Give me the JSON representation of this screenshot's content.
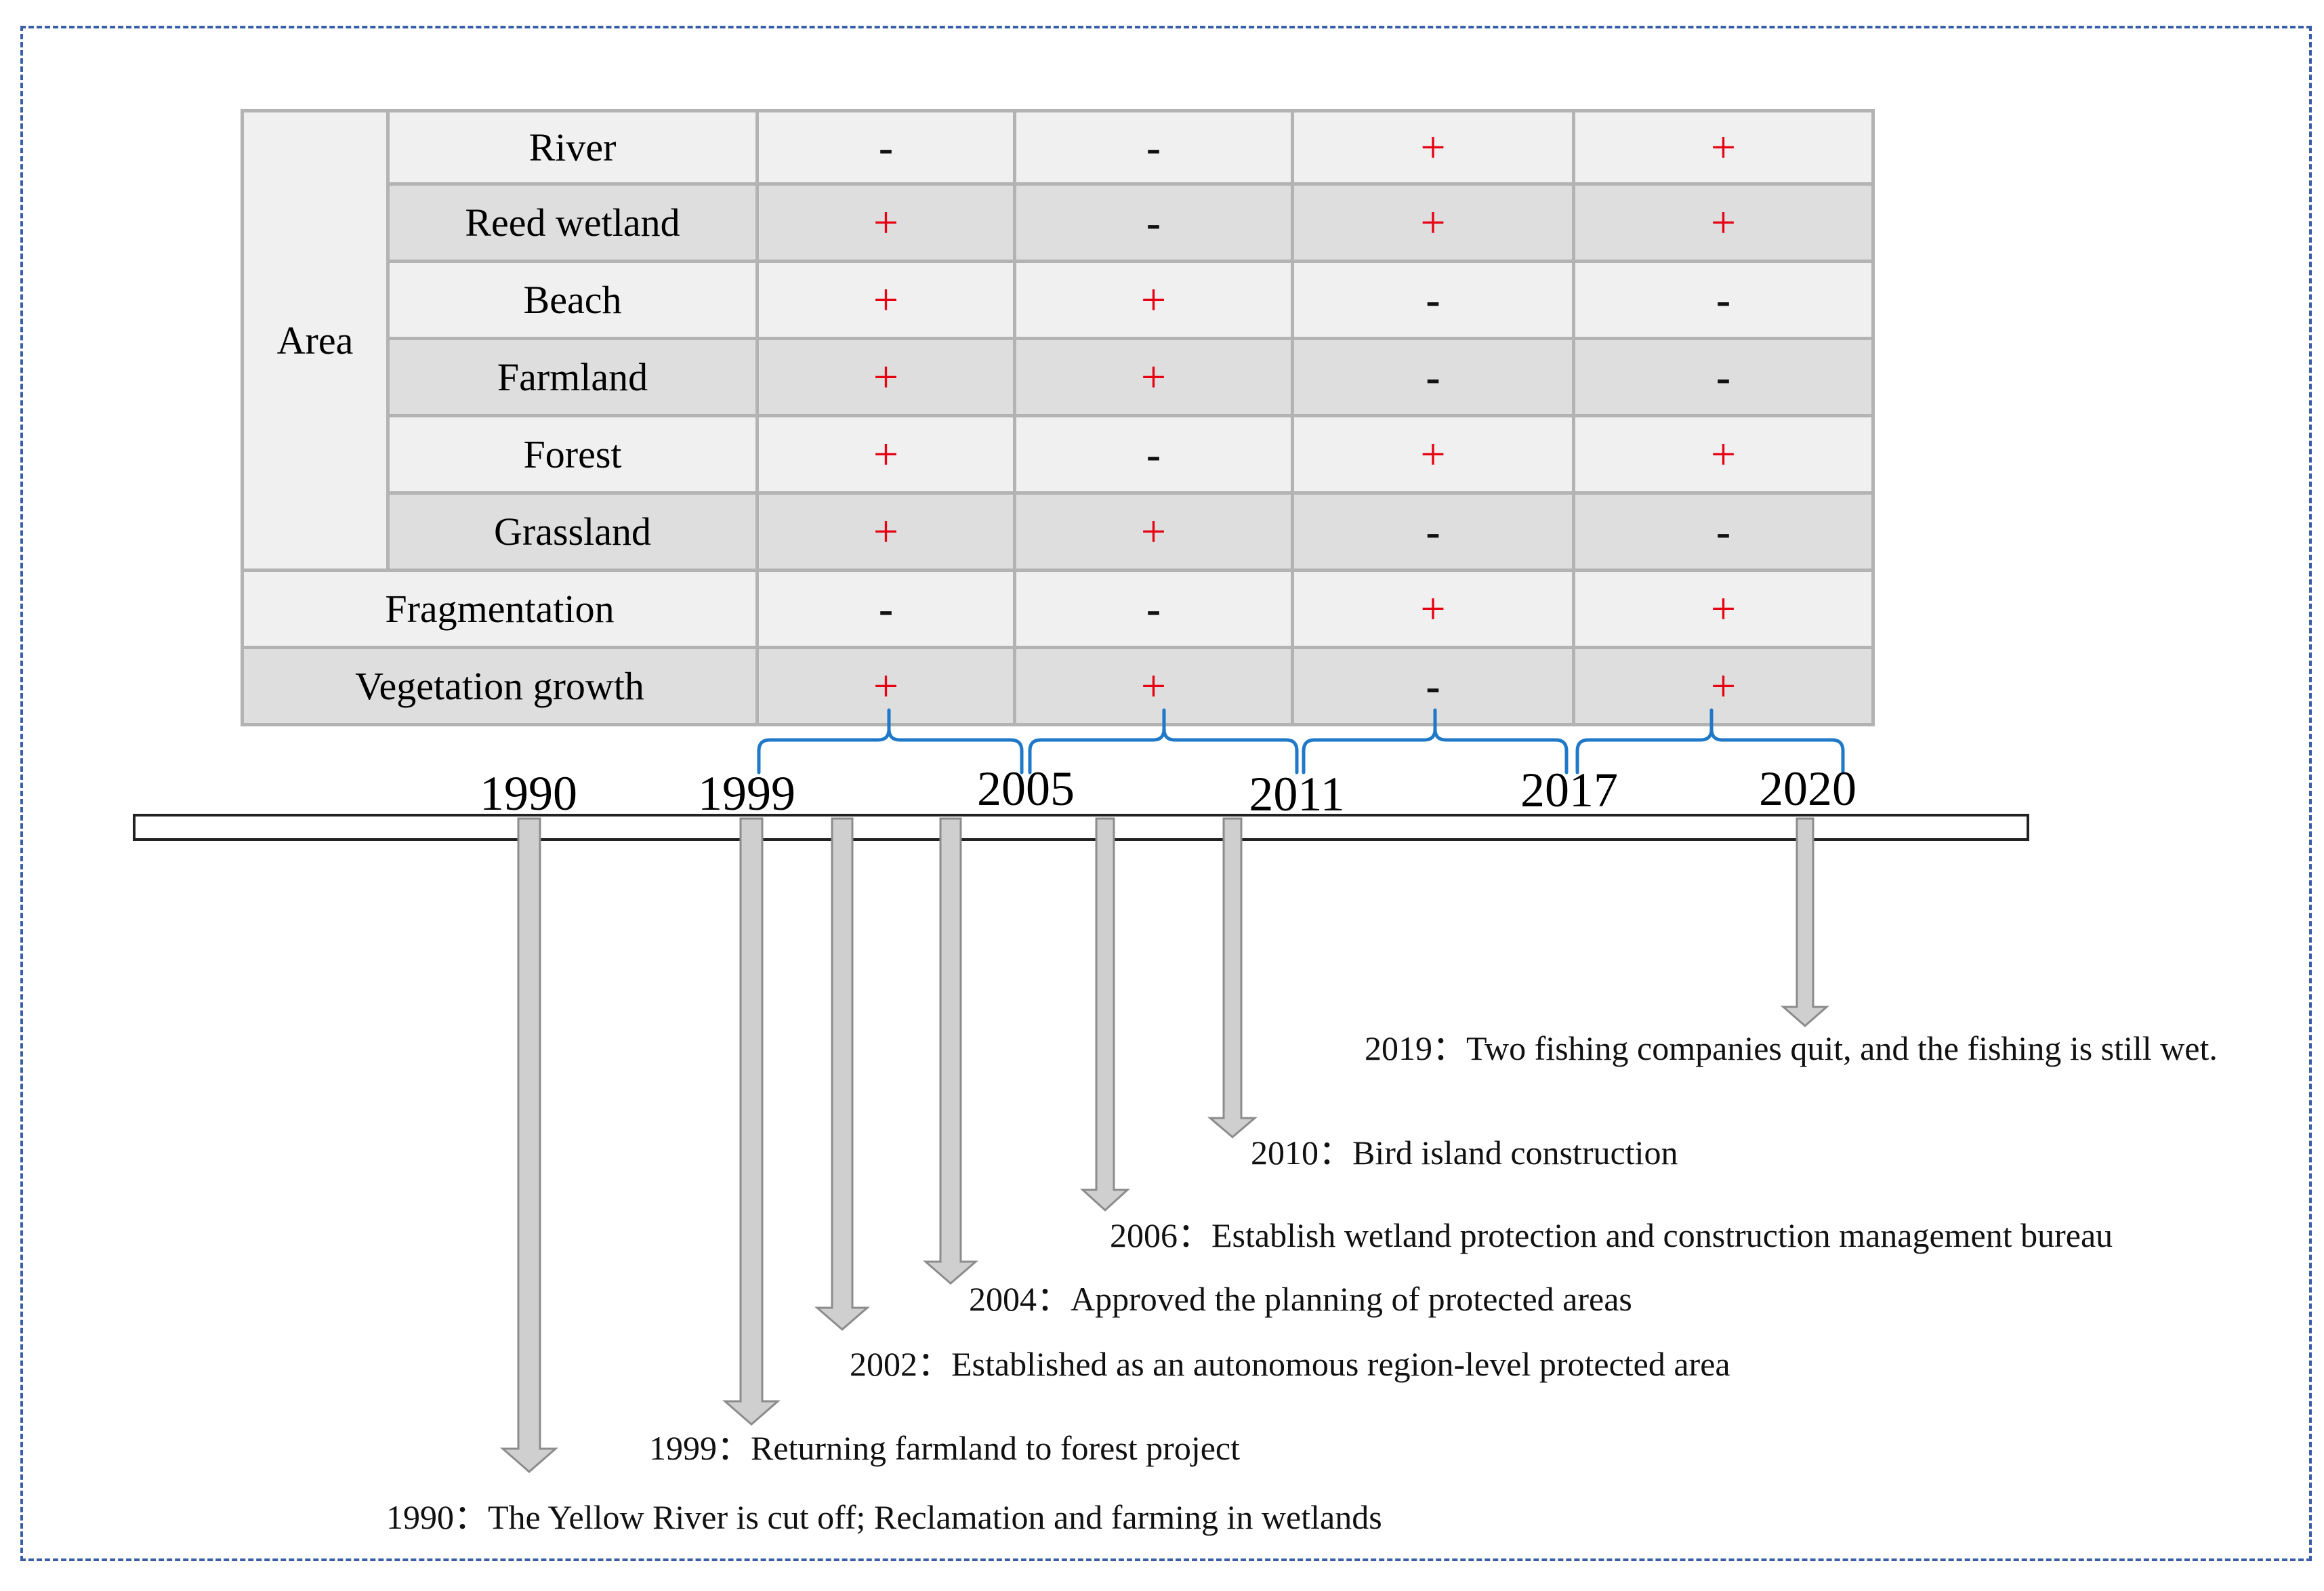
{
  "table": {
    "area_label": "Area",
    "rows": [
      {
        "label": "River",
        "values": [
          "-",
          "-",
          "+",
          "+"
        ]
      },
      {
        "label": "Reed wetland",
        "values": [
          "+",
          "-",
          "+",
          "+"
        ]
      },
      {
        "label": "Beach",
        "values": [
          "+",
          "+",
          "-",
          "-"
        ]
      },
      {
        "label": "Farmland",
        "values": [
          "+",
          "+",
          "-",
          "-"
        ]
      },
      {
        "label": "Forest",
        "values": [
          "+",
          "-",
          "+",
          "+"
        ]
      },
      {
        "label": "Grassland",
        "values": [
          "+",
          "+",
          "-",
          "-"
        ]
      },
      {
        "label": "Fragmentation",
        "values": [
          "-",
          "-",
          "+",
          "+"
        ]
      },
      {
        "label": "Vegetation growth",
        "values": [
          "+",
          "+",
          "-",
          "+"
        ]
      }
    ]
  },
  "timeline": {
    "years": [
      "1990",
      "1999",
      "2005",
      "2011",
      "2017",
      "2020"
    ]
  },
  "events": [
    {
      "year": "1990",
      "text": "1990：The Yellow River is cut off; Reclamation and farming in wetlands"
    },
    {
      "year": "1999",
      "text": "1999：Returning farmland to forest project"
    },
    {
      "year": "2002",
      "text": "2002：Established as an autonomous region-level protected area"
    },
    {
      "year": "2004",
      "text": "2004：Approved the planning of protected areas"
    },
    {
      "year": "2006",
      "text": "2006：Establish wetland protection and construction management bureau"
    },
    {
      "year": "2010",
      "text": "2010：Bird island construction"
    },
    {
      "year": "2019",
      "text": "2019：Two fishing companies quit, and the fishing is still wet."
    }
  ],
  "colors": {
    "plus": "#e60012",
    "minus": "#111111",
    "bracket": "#1f78c8",
    "arrow_fill": "#cfcfcf",
    "arrow_stroke": "#8c8c8c",
    "frame": "#3b5ea8"
  }
}
